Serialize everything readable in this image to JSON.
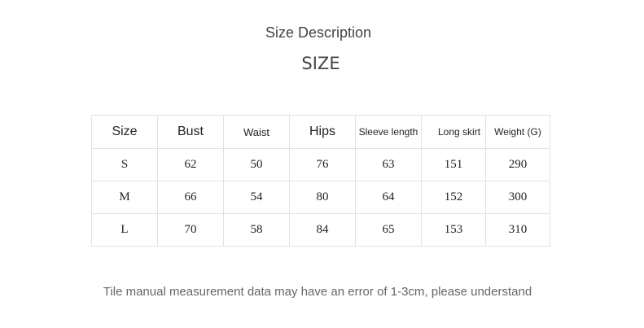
{
  "title": "Size Description",
  "subtitle": "SIZE",
  "table": {
    "headers": [
      "Size",
      "Bust",
      "Waist",
      "Hips",
      "Sleeve length",
      "Long skirt",
      "Weight (G)"
    ],
    "rows": [
      [
        "S",
        "62",
        "50",
        "76",
        "63",
        "151",
        "290"
      ],
      [
        "M",
        "66",
        "54",
        "80",
        "64",
        "152",
        "300"
      ],
      [
        "L",
        "70",
        "58",
        "84",
        "65",
        "153",
        "310"
      ]
    ]
  },
  "note": "Tile manual measurement data may have an error of 1-3cm, please understand"
}
